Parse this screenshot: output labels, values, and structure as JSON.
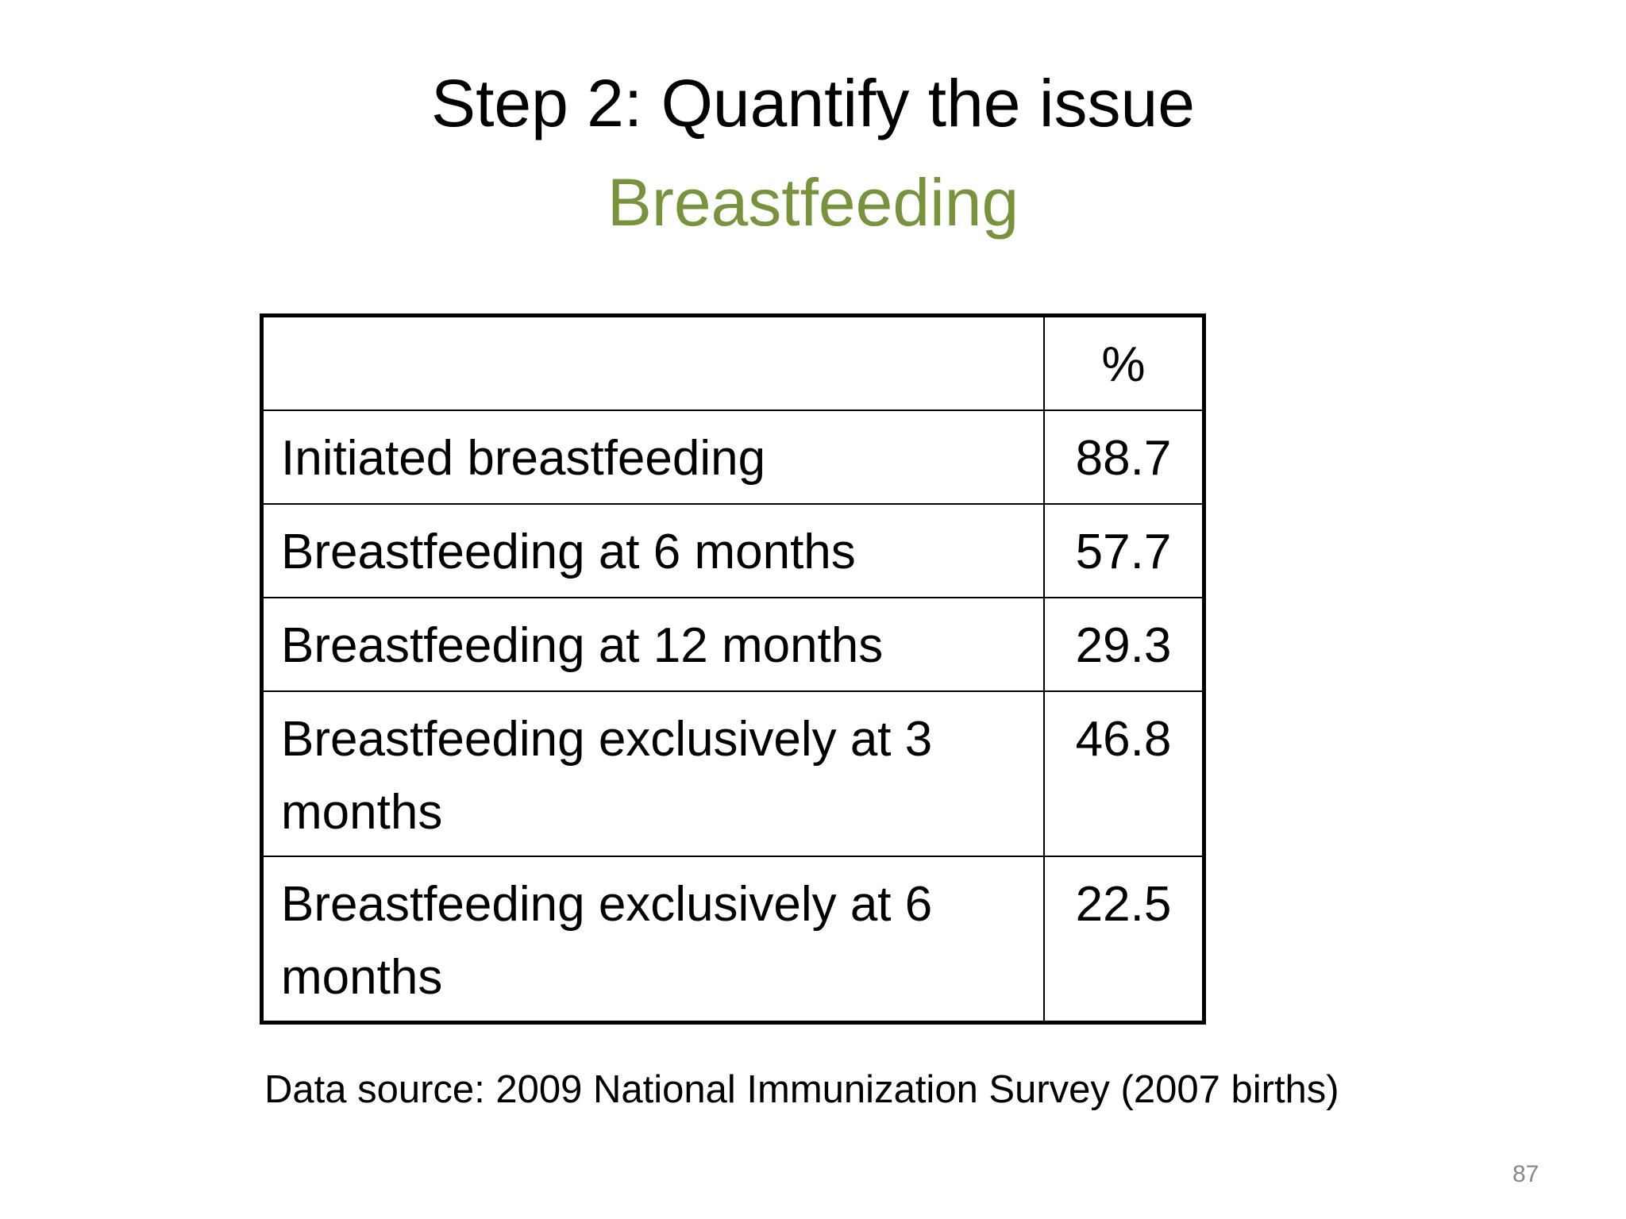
{
  "title": "Step 2: Quantify the issue",
  "subtitle": "Breastfeeding",
  "table": {
    "header": [
      "%"
    ],
    "rows": [
      [
        "Initiated breastfeeding",
        88.7
      ],
      [
        "Breastfeeding at 6 months",
        57.7
      ],
      [
        "Breastfeeding at 12 months",
        29.3
      ],
      [
        "Breastfeeding exclusively at 3 months",
        46.8
      ],
      [
        "Breastfeeding exclusively at 6 months",
        22.5
      ]
    ]
  },
  "footnote": "Data source: 2009 National Immunization Survey (2007 births)",
  "page_number": 87
}
